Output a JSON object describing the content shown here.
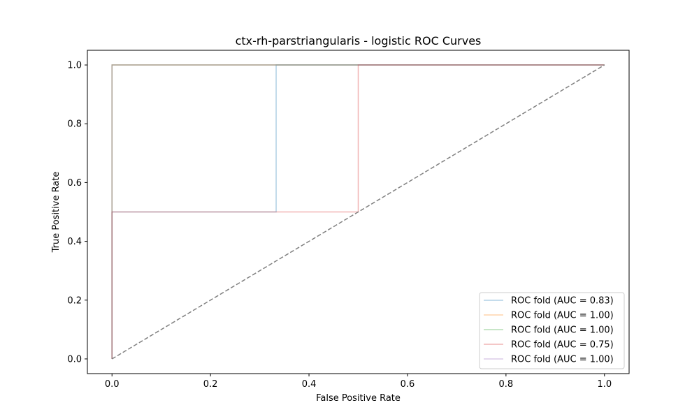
{
  "chart_data": {
    "type": "line",
    "title": "ctx-rh-parstriangularis - logistic ROC Curves",
    "xlabel": "False Positive Rate",
    "ylabel": "True Positive Rate",
    "xlim": [
      -0.05,
      1.05
    ],
    "ylim": [
      -0.05,
      1.05
    ],
    "xticks": [
      "0.0",
      "0.2",
      "0.4",
      "0.6",
      "0.8",
      "1.0"
    ],
    "yticks": [
      "0.0",
      "0.2",
      "0.4",
      "0.6",
      "0.8",
      "1.0"
    ],
    "grid": false,
    "legend_position": "lower-right",
    "series": [
      {
        "name": "ROC fold (AUC = 0.83)",
        "color": "#1f77b4",
        "x": [
          0,
          0,
          0.3333,
          0.3333,
          1
        ],
        "y": [
          0,
          0.5,
          0.5,
          1,
          1
        ]
      },
      {
        "name": "ROC fold (AUC = 1.00)",
        "color": "#ff7f0e",
        "x": [
          0,
          0,
          1
        ],
        "y": [
          0,
          1,
          1
        ]
      },
      {
        "name": "ROC fold (AUC = 1.00)",
        "color": "#2ca02c",
        "x": [
          0,
          0,
          1
        ],
        "y": [
          0,
          1,
          1
        ]
      },
      {
        "name": "ROC fold (AUC = 0.75)",
        "color": "#d62728",
        "x": [
          0,
          0,
          0.5,
          0.5,
          1
        ],
        "y": [
          0,
          0.5,
          0.5,
          1,
          1
        ]
      },
      {
        "name": "ROC fold (AUC = 1.00)",
        "color": "#9467bd",
        "x": [
          0,
          0,
          1
        ],
        "y": [
          0,
          1,
          1
        ]
      }
    ],
    "reference_line": {
      "x": [
        0,
        1
      ],
      "y": [
        0,
        1
      ],
      "color": "#808080",
      "style": "dashed"
    }
  }
}
